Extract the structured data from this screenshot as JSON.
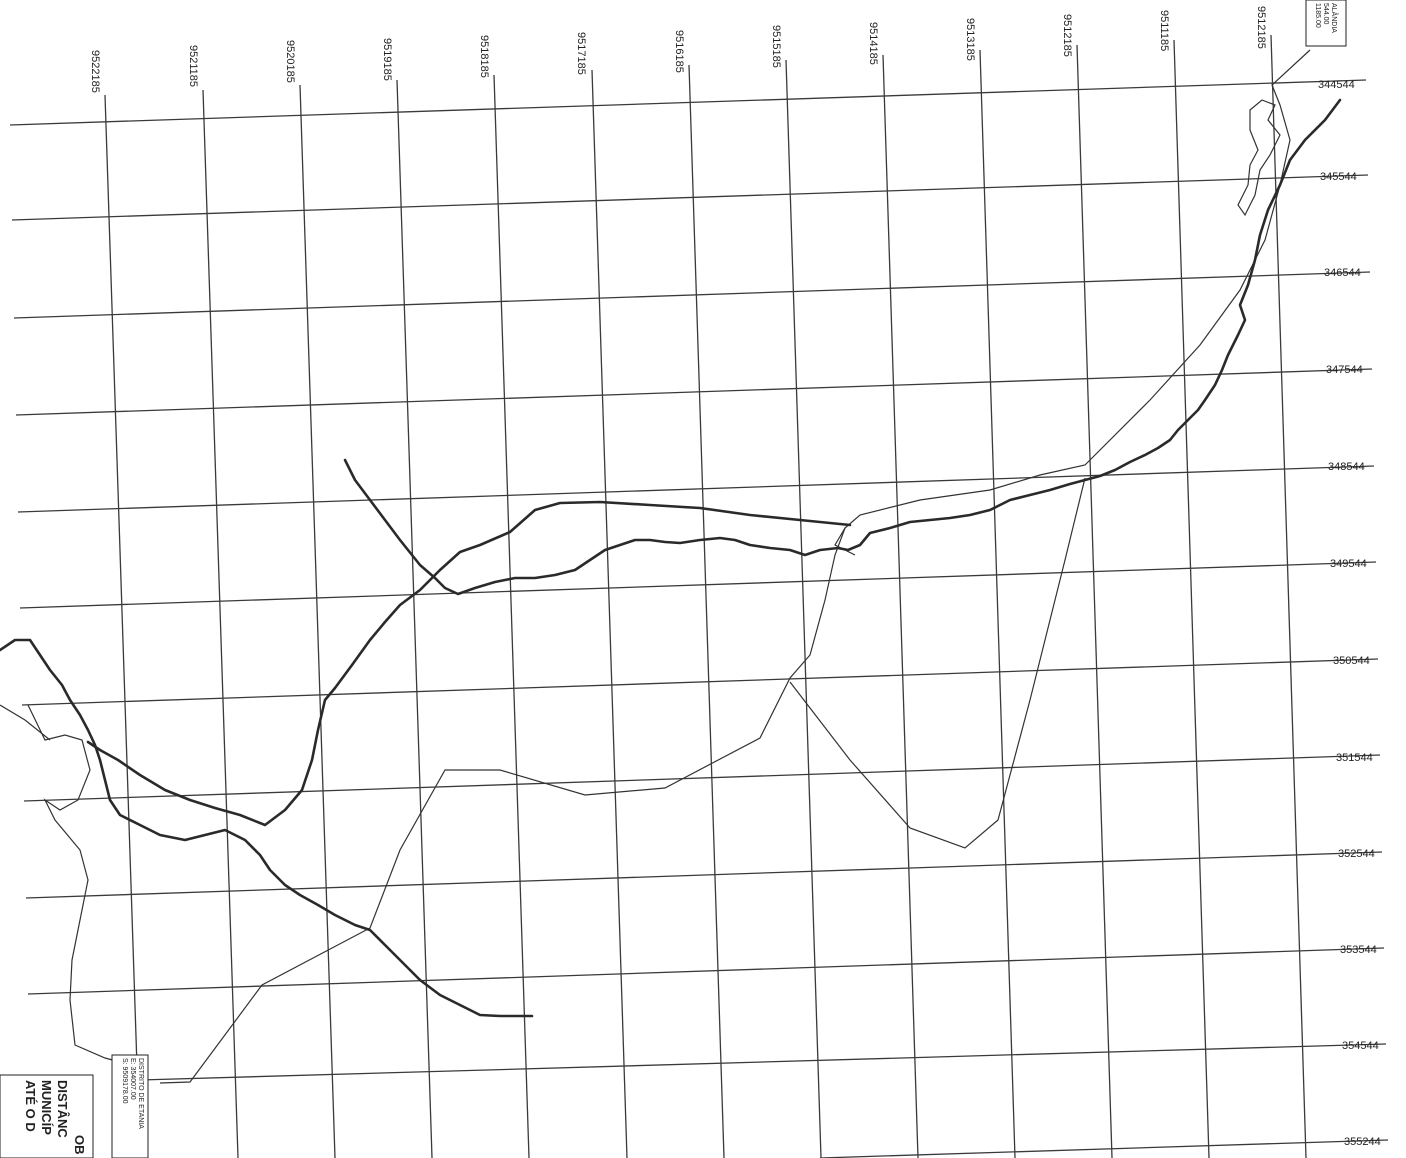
{
  "map": {
    "northing_labels": [
      "9522185",
      "9521185",
      "9520185",
      "9519185",
      "9518185",
      "9517185",
      "9516185",
      "9515185",
      "9514185",
      "9513185",
      "9512185",
      "9511185",
      "9512185"
    ],
    "easting_labels": [
      "344544",
      "345544",
      "346544",
      "347544",
      "348544",
      "349544",
      "350544",
      "351544",
      "352544",
      "353544",
      "354544",
      "355244"
    ],
    "corner_box": [
      "ALÂNDIA",
      "544.00",
      "1185.00"
    ],
    "district_box": [
      "DISTRITO DE ETANIA",
      "E: 354007.00",
      "S: 9509178.00"
    ],
    "corner_text": [
      "OB",
      "DISTÂNC",
      "MUNICÍP",
      "ATÉ O D"
    ]
  }
}
